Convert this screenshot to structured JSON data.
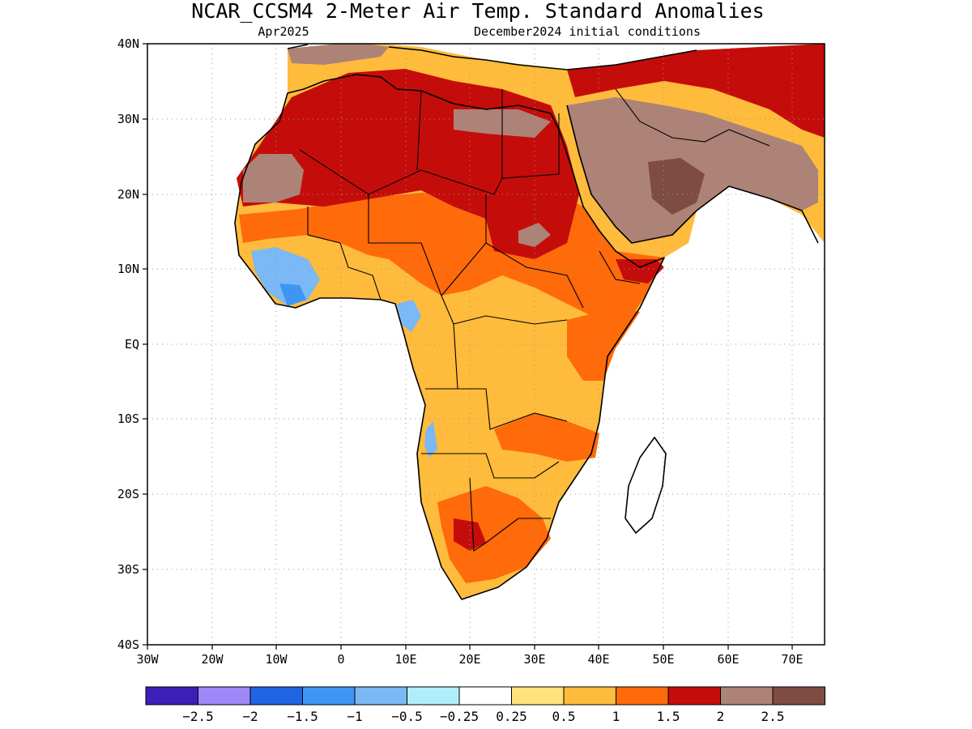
{
  "title": "NCAR_CCSM4 2-Meter Air Temp. Standard Anomalies",
  "subtitle_left": "Apr2025",
  "subtitle_right": "December2024 initial conditions",
  "lat_ticks": [
    "40N",
    "30N",
    "20N",
    "10N",
    "EQ",
    "10S",
    "20S",
    "30S",
    "40S"
  ],
  "lon_ticks": [
    "30W",
    "20W",
    "10W",
    "0",
    "10E",
    "20E",
    "30E",
    "40E",
    "50E",
    "60E",
    "70E"
  ],
  "colorbar": {
    "colors": [
      "#3c1fb9",
      "#9f88f7",
      "#1f64e3",
      "#3f96f2",
      "#7ab8f6",
      "#b0eefa",
      "#ffffff",
      "#ffe27a",
      "#ffbb3c",
      "#ff6a0a",
      "#c40d0a",
      "#ad8277",
      "#7e4c42"
    ],
    "labels": [
      "-2.5",
      "-2",
      "-1.5",
      "-1",
      "-0.5",
      "-0.25",
      "0.25",
      "0.5",
      "1",
      "1.5",
      "2",
      "2.5"
    ]
  }
}
